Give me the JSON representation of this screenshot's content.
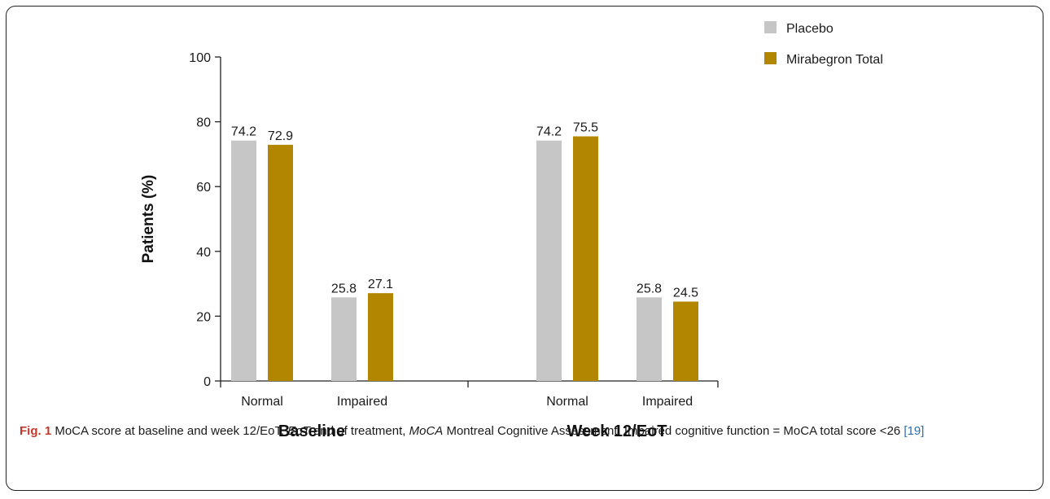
{
  "chart_data": {
    "type": "bar",
    "ylabel": "Patients (%)",
    "ylim": [
      0,
      100
    ],
    "yticks": [
      0,
      20,
      40,
      60,
      80,
      100
    ],
    "grid": false,
    "legend_position": "top-right",
    "groups": [
      {
        "name": "Baseline",
        "categories": [
          "Normal",
          "Impaired"
        ]
      },
      {
        "name": "Week 12/EoT",
        "categories": [
          "Normal",
          "Impaired"
        ]
      }
    ],
    "series": [
      {
        "name": "Placebo",
        "color": "#c6c6c6",
        "values": [
          74.2,
          25.8,
          74.2,
          25.8
        ]
      },
      {
        "name": "Mirabegron Total",
        "color": "#b38600",
        "values": [
          72.9,
          27.1,
          75.5,
          24.5
        ]
      }
    ],
    "value_labels": [
      [
        "74.2",
        "25.8",
        "74.2",
        "25.8"
      ],
      [
        "72.9",
        "27.1",
        "75.5",
        "24.5"
      ]
    ]
  },
  "caption": {
    "fig_label": "Fig. 1",
    "t1": " MoCA score at baseline and week 12/EoT. ",
    "i1": "EoT",
    "t2": " end of treatment, ",
    "i2": "MoCA",
    "t3": " Montreal Cognitive Assessment. Impaired cognitive function = MoCA total score <26 ",
    "ref": "[19]"
  }
}
